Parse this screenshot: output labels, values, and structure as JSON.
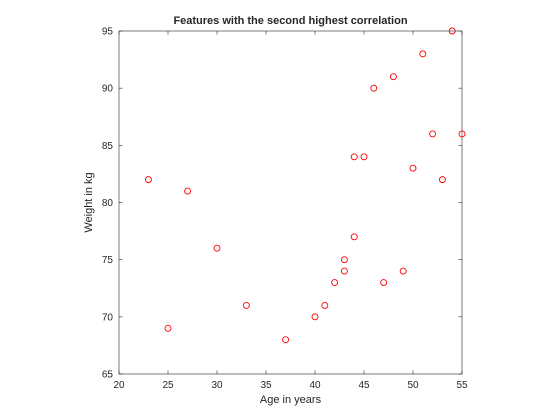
{
  "chart_data": {
    "type": "scatter",
    "title": "Features with the second highest correlation",
    "xlabel": "Age in years",
    "ylabel": "Weight in kg",
    "xlim": [
      20,
      55
    ],
    "ylim": [
      65,
      95
    ],
    "xticks": [
      20,
      25,
      30,
      35,
      40,
      45,
      50,
      55
    ],
    "yticks": [
      65,
      70,
      75,
      80,
      85,
      90,
      95
    ],
    "grid": false,
    "legend": "none",
    "marker": "o",
    "color": "#ff0000",
    "series": [
      {
        "points": [
          [
            23,
            82
          ],
          [
            25,
            69
          ],
          [
            27,
            81
          ],
          [
            30,
            76
          ],
          [
            33,
            71
          ],
          [
            37,
            68
          ],
          [
            40,
            70
          ],
          [
            41,
            71
          ],
          [
            42,
            73
          ],
          [
            43,
            74
          ],
          [
            43,
            75
          ],
          [
            44,
            77
          ],
          [
            44,
            84
          ],
          [
            45,
            84
          ],
          [
            46,
            90
          ],
          [
            47,
            73
          ],
          [
            48,
            91
          ],
          [
            49,
            74
          ],
          [
            50,
            83
          ],
          [
            51,
            93
          ],
          [
            52,
            86
          ],
          [
            53,
            82
          ],
          [
            54,
            95
          ],
          [
            55,
            86
          ]
        ]
      }
    ]
  }
}
